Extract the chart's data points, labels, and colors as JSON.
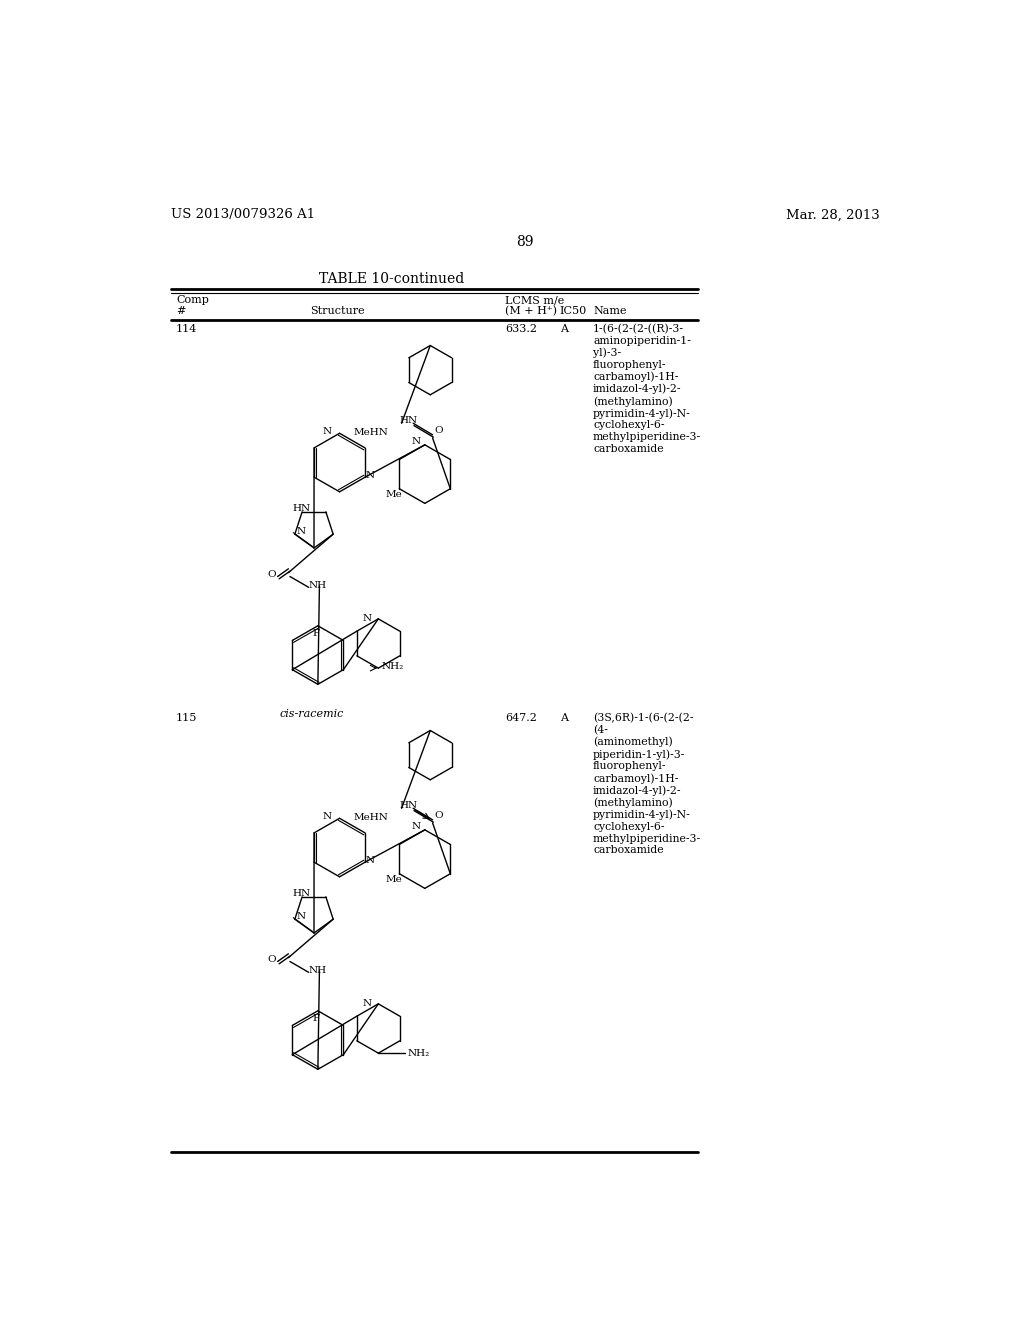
{
  "background_color": "#ffffff",
  "page_number": "89",
  "patent_number": "US 2013/0079326 A1",
  "patent_date": "Mar. 28, 2013",
  "table_title": "TABLE 10-continued",
  "rows": [
    {
      "comp_num": "114",
      "lcms": "633.2",
      "ic50": "A",
      "name": "1-(6-(2-(2-((R)-3-\naminopiperidin-1-\nyl)-3-\nfluorophenyl-\ncarbamoyl)-1H-\nimidazol-4-yl)-2-\n(methylamino)\npyrimidin-4-yl)-N-\ncyclohexyl-6-\nmethylpiperidine-3-\ncarboxamide",
      "sublabel": "cis-racemic"
    },
    {
      "comp_num": "115",
      "lcms": "647.2",
      "ic50": "A",
      "name": "(3S,6R)-1-(6-(2-(2-\n(4-\n(aminomethyl)\npiperidin-1-yl)-3-\nfluorophenyl-\ncarbamoyl)-1H-\nimidazol-4-yl)-2-\n(methylamino)\npyrimidin-4-yl)-N-\ncyclohexyl-6-\nmethylpiperidine-3-\ncarboxamide",
      "sublabel": ""
    }
  ]
}
